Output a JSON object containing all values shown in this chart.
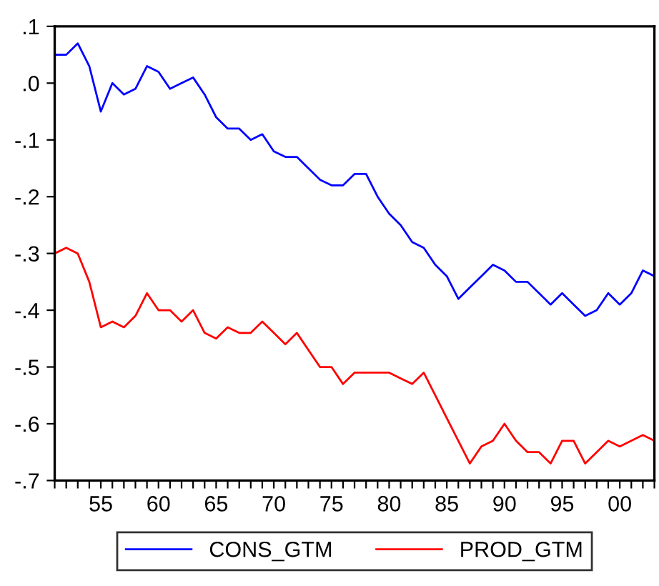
{
  "chart_data": {
    "type": "line",
    "x": [
      1951,
      1952,
      1953,
      1954,
      1955,
      1956,
      1957,
      1958,
      1959,
      1960,
      1961,
      1962,
      1963,
      1964,
      1965,
      1966,
      1967,
      1968,
      1969,
      1970,
      1971,
      1972,
      1973,
      1974,
      1975,
      1976,
      1977,
      1978,
      1979,
      1980,
      1981,
      1982,
      1983,
      1984,
      1985,
      1986,
      1987,
      1988,
      1989,
      1990,
      1991,
      1992,
      1993,
      1994,
      1995,
      1996,
      1997,
      1998,
      1999,
      2000,
      2001,
      2002,
      2003
    ],
    "series": [
      {
        "name": "CONS_GTM",
        "color": "#0000ff",
        "values": [
          0.05,
          0.05,
          0.07,
          0.03,
          -0.05,
          0.0,
          -0.02,
          -0.01,
          0.03,
          0.02,
          -0.01,
          0.0,
          0.01,
          -0.02,
          -0.06,
          -0.08,
          -0.08,
          -0.1,
          -0.09,
          -0.12,
          -0.13,
          -0.13,
          -0.15,
          -0.17,
          -0.18,
          -0.18,
          -0.16,
          -0.16,
          -0.2,
          -0.23,
          -0.25,
          -0.28,
          -0.29,
          -0.32,
          -0.34,
          -0.38,
          -0.36,
          -0.34,
          -0.32,
          -0.33,
          -0.35,
          -0.35,
          -0.37,
          -0.39,
          -0.37,
          -0.39,
          -0.41,
          -0.4,
          -0.37,
          -0.39,
          -0.37,
          -0.33,
          -0.34
        ]
      },
      {
        "name": "PROD_GTM",
        "color": "#ff0000",
        "values": [
          -0.3,
          -0.29,
          -0.3,
          -0.35,
          -0.43,
          -0.42,
          -0.43,
          -0.41,
          -0.37,
          -0.4,
          -0.4,
          -0.42,
          -0.4,
          -0.44,
          -0.45,
          -0.43,
          -0.44,
          -0.44,
          -0.42,
          -0.44,
          -0.46,
          -0.44,
          -0.47,
          -0.5,
          -0.5,
          -0.53,
          -0.51,
          -0.51,
          -0.51,
          -0.51,
          -0.52,
          -0.53,
          -0.51,
          -0.55,
          -0.59,
          -0.63,
          -0.67,
          -0.64,
          -0.63,
          -0.6,
          -0.63,
          -0.65,
          -0.65,
          -0.67,
          -0.63,
          -0.63,
          -0.67,
          -0.65,
          -0.63,
          -0.64,
          -0.63,
          -0.62,
          -0.63
        ]
      }
    ],
    "xlim": [
      1951,
      2003
    ],
    "xticks": [
      {
        "value": 1951,
        "label": null
      },
      {
        "value": 1952,
        "label": null
      },
      {
        "value": 1953,
        "label": null
      },
      {
        "value": 1954,
        "label": null
      },
      {
        "value": 1955,
        "label": "55"
      },
      {
        "value": 1956,
        "label": null
      },
      {
        "value": 1957,
        "label": null
      },
      {
        "value": 1958,
        "label": null
      },
      {
        "value": 1959,
        "label": null
      },
      {
        "value": 1960,
        "label": "60"
      },
      {
        "value": 1961,
        "label": null
      },
      {
        "value": 1962,
        "label": null
      },
      {
        "value": 1963,
        "label": null
      },
      {
        "value": 1964,
        "label": null
      },
      {
        "value": 1965,
        "label": "65"
      },
      {
        "value": 1966,
        "label": null
      },
      {
        "value": 1967,
        "label": null
      },
      {
        "value": 1968,
        "label": null
      },
      {
        "value": 1969,
        "label": null
      },
      {
        "value": 1970,
        "label": "70"
      },
      {
        "value": 1971,
        "label": null
      },
      {
        "value": 1972,
        "label": null
      },
      {
        "value": 1973,
        "label": null
      },
      {
        "value": 1974,
        "label": null
      },
      {
        "value": 1975,
        "label": "75"
      },
      {
        "value": 1976,
        "label": null
      },
      {
        "value": 1977,
        "label": null
      },
      {
        "value": 1978,
        "label": null
      },
      {
        "value": 1979,
        "label": null
      },
      {
        "value": 1980,
        "label": "80"
      },
      {
        "value": 1981,
        "label": null
      },
      {
        "value": 1982,
        "label": null
      },
      {
        "value": 1983,
        "label": null
      },
      {
        "value": 1984,
        "label": null
      },
      {
        "value": 1985,
        "label": "85"
      },
      {
        "value": 1986,
        "label": null
      },
      {
        "value": 1987,
        "label": null
      },
      {
        "value": 1988,
        "label": null
      },
      {
        "value": 1989,
        "label": null
      },
      {
        "value": 1990,
        "label": "90"
      },
      {
        "value": 1991,
        "label": null
      },
      {
        "value": 1992,
        "label": null
      },
      {
        "value": 1993,
        "label": null
      },
      {
        "value": 1994,
        "label": null
      },
      {
        "value": 1995,
        "label": "95"
      },
      {
        "value": 1996,
        "label": null
      },
      {
        "value": 1997,
        "label": null
      },
      {
        "value": 1998,
        "label": null
      },
      {
        "value": 1999,
        "label": null
      },
      {
        "value": 2000,
        "label": "00"
      },
      {
        "value": 2001,
        "label": null
      },
      {
        "value": 2002,
        "label": null
      },
      {
        "value": 2003,
        "label": null
      }
    ],
    "ylim": [
      -0.7,
      0.1
    ],
    "yticks": [
      {
        "value": 0.1,
        "label": ".1"
      },
      {
        "value": 0.0,
        "label": ".0"
      },
      {
        "value": -0.1,
        "label": "-.1"
      },
      {
        "value": -0.2,
        "label": "-.2"
      },
      {
        "value": -0.3,
        "label": "-.3"
      },
      {
        "value": -0.4,
        "label": "-.4"
      },
      {
        "value": -0.5,
        "label": "-.5"
      },
      {
        "value": -0.6,
        "label": "-.6"
      },
      {
        "value": -0.7,
        "label": "-.7"
      }
    ],
    "legend": "bottom",
    "grid": false,
    "marker": "none",
    "line_style": "solid"
  }
}
